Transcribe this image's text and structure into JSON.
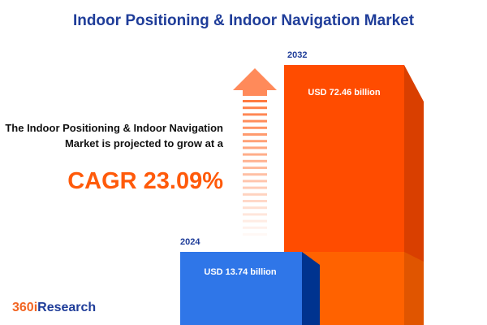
{
  "title": "Indoor Positioning & Indoor Navigation Market",
  "description": "The Indoor Positioning & Indoor Navigation Market is projected to grow at a",
  "cagr": "CAGR 23.09%",
  "logo": {
    "part1": "360i",
    "part2": "Research"
  },
  "colors": {
    "title": "#1f3d99",
    "bar_2024": "#2f76e8",
    "bar_2032": "#ff4c00",
    "cagr": "#ff5a0a"
  },
  "icons": [
    "up-arrow-icon"
  ],
  "chart_data": {
    "type": "bar",
    "categories": [
      "2024",
      "2032"
    ],
    "values": [
      13.74,
      72.46
    ],
    "labels": [
      "USD 13.74 billion",
      "USD 72.46 billion"
    ],
    "unit": "USD billion"
  }
}
